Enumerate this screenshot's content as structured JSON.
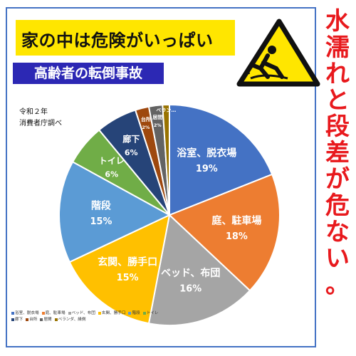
{
  "banner": {
    "title": "家の中は危険がいっぱい"
  },
  "subtitle": "高齢者の転倒事故",
  "source": [
    "令和２年",
    "消費者庁調べ"
  ],
  "side_text": [
    "水",
    "濡",
    "れ",
    "と",
    "段",
    "差",
    "が",
    "危",
    "な",
    "い",
    "。"
  ],
  "icon": "slip-warning-icon",
  "chart_data": {
    "type": "pie",
    "title": "",
    "start_angle_deg": 0,
    "direction": "clockwise",
    "legend_position": "bottom-left",
    "categories": [
      "浴室、脱衣場",
      "庭、駐車場",
      "ベッド、布団",
      "玄関、勝手口",
      "階段",
      "トイレ",
      "廊下",
      "台所",
      "居間",
      "ベランダ、縁側"
    ],
    "slice_labels": [
      "浴室、脱衣場",
      "庭、駐車場",
      "ベッド、布団",
      "玄関、勝手口",
      "階段",
      "トイレ",
      "廊下",
      "台所",
      "居間",
      "ベラン…"
    ],
    "values": [
      19,
      18,
      16,
      15,
      15,
      6,
      6,
      2,
      2,
      1
    ],
    "value_labels": [
      "19%",
      "18%",
      "16%",
      "15%",
      "15%",
      "6%",
      "6%",
      "2%",
      "2%",
      ""
    ],
    "colors": [
      "#4472c4",
      "#ed7d31",
      "#a5a5a5",
      "#ffc000",
      "#5b9bd5",
      "#70ad47",
      "#264478",
      "#9e480e",
      "#636363",
      "#997300"
    ]
  }
}
